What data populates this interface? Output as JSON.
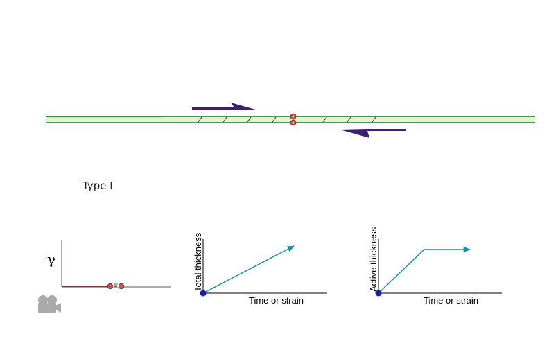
{
  "title": "Type I",
  "colors": {
    "shear_zone_fill": "#e9f2c8",
    "shear_zone_border": "#0f7a3c",
    "shear_arrow": "#3b1f6e",
    "marker": "#b25a4c",
    "graph_axis": "#000000",
    "graph_line": "#1a8fa0",
    "origin_dot": "#1a1aa8",
    "gamma_baseline": "#7a2a2a",
    "camera_icon": "#aaaaaa"
  },
  "shear_zone": {
    "sense": "dextral",
    "top_arrow_direction": "right",
    "bottom_arrow_direction": "left"
  },
  "gamma_plot": {
    "ylabel": "γ",
    "icon": "movie-camera-icon"
  },
  "graphs": [
    {
      "ylabel": "Total thickness",
      "xlabel": "Time or strain",
      "shape": "linear increase"
    },
    {
      "ylabel": "Active thickness",
      "xlabel": "Time or strain",
      "shape": "increase then constant"
    }
  ]
}
